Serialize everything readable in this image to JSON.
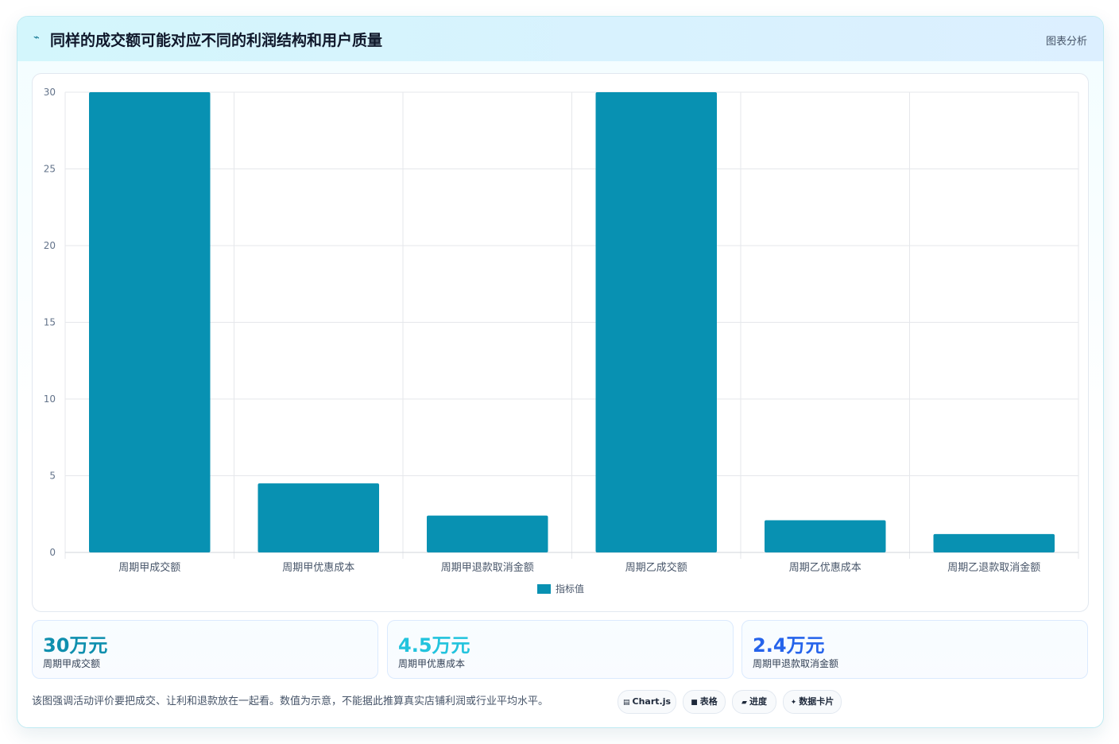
{
  "header": {
    "icon": "pulse-icon",
    "title": "同样的成交额可能对应不同的利润结构和用户质量",
    "tag": "图表分析"
  },
  "colors": {
    "bar": "#0891b2",
    "grid": "#e5e7eb",
    "stat_1": "#0e8fae",
    "stat_2": "#22c3dd",
    "stat_3": "#2563eb"
  },
  "chart_data": {
    "type": "bar",
    "categories": [
      "周期甲成交额",
      "周期甲优惠成本",
      "周期甲退款取消金额",
      "周期乙成交额",
      "周期乙优惠成本",
      "周期乙退款取消金额"
    ],
    "series": [
      {
        "name": "指标值",
        "values": [
          30,
          4.5,
          2.4,
          30,
          2.1,
          1.2
        ]
      }
    ],
    "ylim": [
      0,
      30
    ],
    "yticks": [
      0,
      5,
      10,
      15,
      20,
      25,
      30
    ],
    "grid": true,
    "legend": "bottom-center"
  },
  "stats": [
    {
      "value": "30万元",
      "label": "周期甲成交额"
    },
    {
      "value": "4.5万元",
      "label": "周期甲优惠成本"
    },
    {
      "value": "2.4万元",
      "label": "周期甲退款取消金额"
    }
  ],
  "footer": {
    "note": "该图强调活动评价要把成交、让利和退款放在一起看。数值为示意，不能据此推算真实店铺利润或行业平均水平。",
    "pills": [
      {
        "icon": "chart-icon",
        "label": "Chart.js"
      },
      {
        "icon": "table-icon",
        "label": "表格"
      },
      {
        "icon": "progress-icon",
        "label": "进度"
      },
      {
        "icon": "card-icon",
        "label": "数据卡片"
      }
    ]
  }
}
